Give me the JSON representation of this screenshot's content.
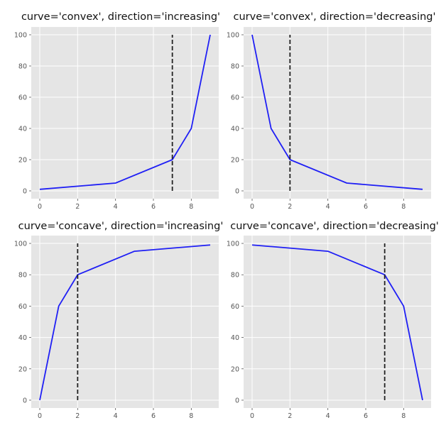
{
  "chart_data": [
    {
      "type": "line",
      "title": "curve='convex', direction='increasing'",
      "x": [
        0,
        4,
        7,
        8,
        9
      ],
      "series": [
        {
          "values": [
            1,
            5,
            20,
            40,
            100
          ]
        }
      ],
      "vline": 7,
      "xlim": [
        -0.45,
        9.45
      ],
      "ylim": [
        -5,
        105
      ],
      "xticks": [
        0,
        2,
        4,
        6,
        8
      ],
      "yticks": [
        0,
        20,
        40,
        60,
        80,
        100
      ],
      "grid": true
    },
    {
      "type": "line",
      "title": "curve='convex', direction='decreasing'",
      "x": [
        0,
        1,
        2,
        5,
        9
      ],
      "series": [
        {
          "values": [
            100,
            40,
            20,
            5,
            1
          ]
        }
      ],
      "vline": 2,
      "xlim": [
        -0.45,
        9.45
      ],
      "ylim": [
        -5,
        105
      ],
      "xticks": [
        0,
        2,
        4,
        6,
        8
      ],
      "yticks": [
        0,
        20,
        40,
        60,
        80,
        100
      ],
      "grid": true
    },
    {
      "type": "line",
      "title": "curve='concave', direction='increasing'",
      "x": [
        0,
        1,
        2,
        5,
        9
      ],
      "series": [
        {
          "values": [
            0,
            60,
            80,
            95,
            99
          ]
        }
      ],
      "vline": 2,
      "xlim": [
        -0.45,
        9.45
      ],
      "ylim": [
        -5,
        105
      ],
      "xticks": [
        0,
        2,
        4,
        6,
        8
      ],
      "yticks": [
        0,
        20,
        40,
        60,
        80,
        100
      ],
      "grid": true
    },
    {
      "type": "line",
      "title": "curve='concave', direction='decreasing'",
      "x": [
        0,
        4,
        7,
        8,
        9
      ],
      "series": [
        {
          "values": [
            99,
            95,
            80,
            60,
            0
          ]
        }
      ],
      "vline": 7,
      "xlim": [
        -0.45,
        9.45
      ],
      "ylim": [
        -5,
        105
      ],
      "xticks": [
        0,
        2,
        4,
        6,
        8
      ],
      "yticks": [
        0,
        20,
        40,
        60,
        80,
        100
      ],
      "grid": true
    }
  ],
  "style": {
    "background": "#e5e5e5",
    "grid_color": "#ffffff",
    "line_color": "#1f1ff5",
    "vline_color": "#222222"
  }
}
